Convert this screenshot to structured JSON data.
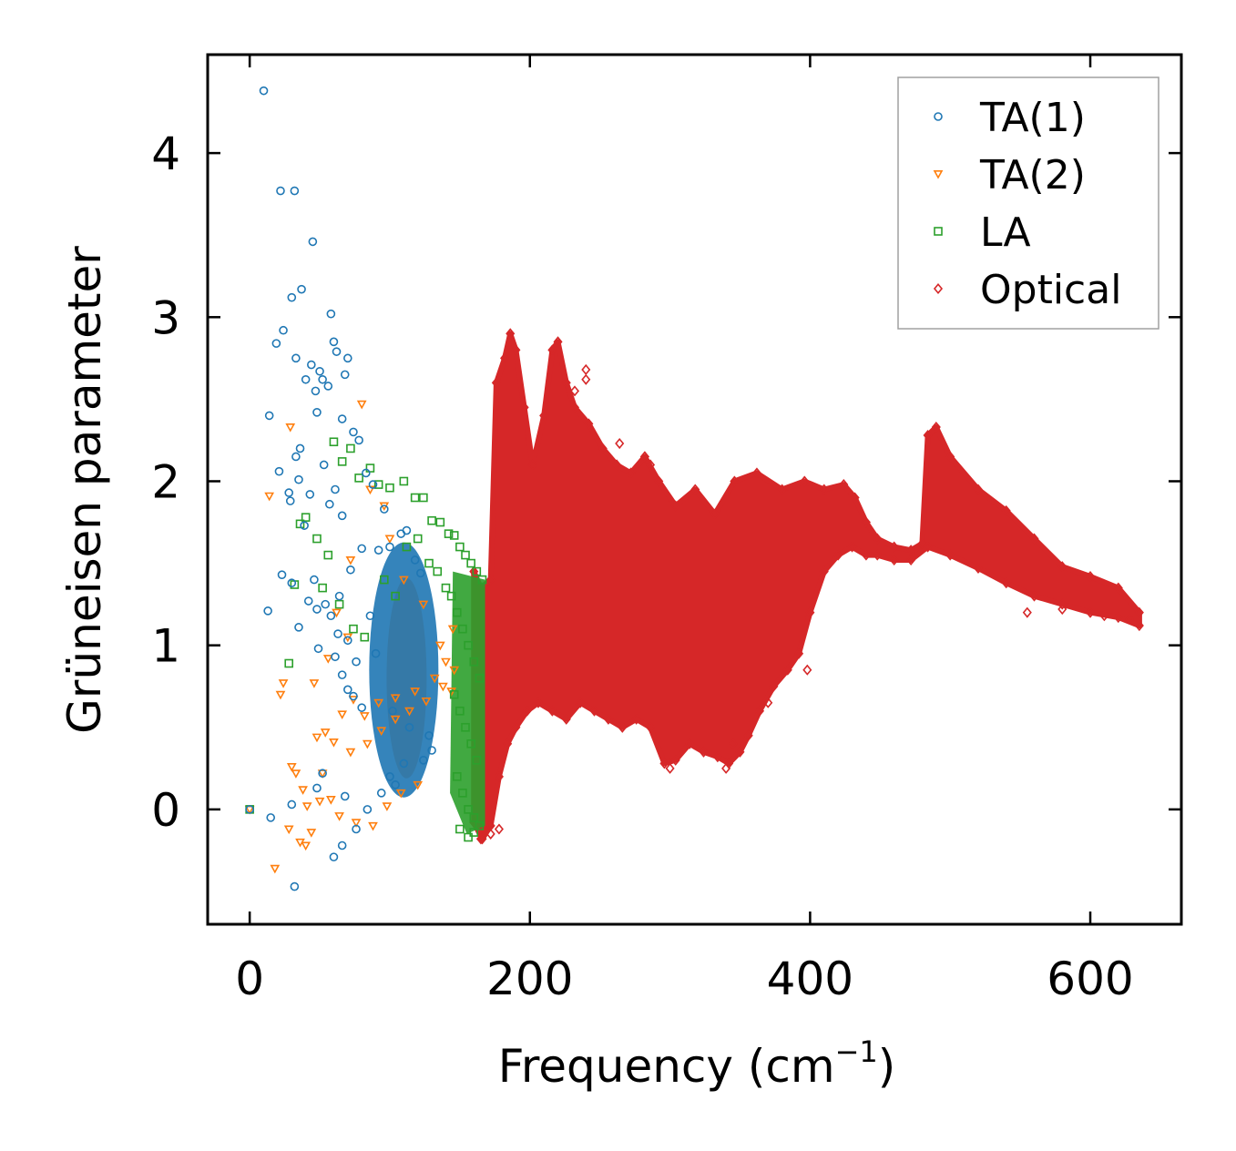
{
  "chart_data": {
    "type": "scatter",
    "title": "",
    "xlabel": "Frequency (cm",
    "xlabel_sup": "−1",
    "xlabel_close": ")",
    "ylabel": "Grüneisen parameter",
    "xlim": [
      -30,
      665
    ],
    "ylim": [
      -0.7,
      4.6
    ],
    "xticks": [
      0,
      200,
      400,
      600
    ],
    "xtick_labels": [
      "0",
      "200",
      "400",
      "600"
    ],
    "yticks": [
      0,
      1,
      2,
      3,
      4
    ],
    "ytick_labels": [
      "0",
      "1",
      "2",
      "3",
      "4"
    ],
    "grid": false,
    "legend_position": "top-right",
    "series": [
      {
        "name": "TA(1)",
        "marker": "circle",
        "color": "#1f77b4",
        "x": [
          10,
          22,
          32,
          45,
          30,
          37,
          24,
          19,
          58,
          60,
          62,
          33,
          44,
          50,
          52,
          47,
          56,
          40,
          70,
          68,
          66,
          36,
          14,
          33,
          48,
          53,
          74,
          78,
          21,
          35,
          28,
          29,
          43,
          39,
          57,
          61,
          66,
          83,
          88,
          96,
          108,
          112,
          122,
          118,
          100,
          92,
          80,
          72,
          64,
          54,
          46,
          23,
          30,
          42,
          48,
          58,
          63,
          70,
          86,
          90,
          76,
          13,
          35,
          49,
          61,
          66,
          70,
          74,
          80,
          102,
          114,
          128,
          130,
          100,
          110,
          0,
          15,
          30,
          48,
          68,
          32,
          60,
          52,
          66,
          76,
          84,
          94,
          104,
          124
        ],
        "y": [
          4.38,
          3.77,
          3.77,
          3.46,
          3.12,
          3.17,
          2.92,
          2.84,
          3.02,
          2.85,
          2.79,
          2.75,
          2.71,
          2.67,
          2.62,
          2.55,
          2.58,
          2.62,
          2.75,
          2.65,
          2.38,
          2.2,
          2.4,
          2.15,
          2.42,
          2.1,
          2.3,
          2.25,
          2.06,
          2.01,
          1.93,
          1.88,
          1.92,
          1.73,
          1.86,
          1.95,
          1.79,
          2.05,
          1.98,
          1.83,
          1.68,
          1.7,
          1.44,
          1.52,
          1.6,
          1.58,
          1.59,
          1.46,
          1.3,
          1.25,
          1.4,
          1.43,
          1.38,
          1.27,
          1.22,
          1.18,
          1.07,
          1.03,
          1.18,
          0.95,
          0.9,
          1.21,
          1.11,
          0.98,
          0.93,
          0.82,
          0.73,
          0.69,
          0.62,
          0.6,
          0.5,
          0.45,
          0.36,
          0.2,
          0.28,
          0.0,
          -0.05,
          0.03,
          0.13,
          0.08,
          -0.47,
          -0.29,
          0.22,
          -0.22,
          -0.12,
          0.0,
          0.1,
          0.15,
          0.3
        ]
      },
      {
        "name": "TA(2)",
        "marker": "triangle-down",
        "color": "#ff7f0e",
        "x": [
          0,
          14,
          29,
          24,
          22,
          30,
          33,
          41,
          48,
          54,
          60,
          66,
          74,
          82,
          92,
          104,
          118,
          132,
          140,
          145,
          80,
          86,
          96,
          100,
          110,
          124,
          136,
          144,
          70,
          62,
          56,
          46,
          38,
          52,
          58,
          64,
          76,
          88,
          98,
          108,
          120,
          40,
          36,
          44,
          50,
          18,
          28,
          72,
          84,
          94,
          104,
          114,
          126,
          138,
          146,
          72
        ],
        "y": [
          0.0,
          1.91,
          2.33,
          0.77,
          0.7,
          0.26,
          0.22,
          0.02,
          0.44,
          0.47,
          0.41,
          0.58,
          0.67,
          0.57,
          0.65,
          0.68,
          0.72,
          0.8,
          0.9,
          1.1,
          2.47,
          1.95,
          1.85,
          1.65,
          1.4,
          1.25,
          1.0,
          0.72,
          1.05,
          1.2,
          0.92,
          0.77,
          0.12,
          0.22,
          0.06,
          -0.04,
          -0.08,
          -0.1,
          0.02,
          0.1,
          0.15,
          -0.22,
          -0.2,
          -0.14,
          0.05,
          -0.36,
          -0.12,
          0.35,
          0.4,
          0.48,
          0.55,
          0.6,
          0.66,
          0.75,
          0.85,
          1.52
        ]
      },
      {
        "name": "LA",
        "marker": "square",
        "color": "#2ca02c",
        "x": [
          0,
          60,
          66,
          72,
          78,
          86,
          92,
          100,
          110,
          118,
          124,
          130,
          136,
          142,
          146,
          150,
          154,
          158,
          162,
          166,
          40,
          36,
          32,
          28,
          56,
          48,
          52,
          64,
          74,
          82,
          96,
          104,
          112,
          120,
          128,
          134,
          140,
          144,
          148,
          152,
          156,
          160,
          164,
          146,
          150,
          154,
          158,
          162,
          148,
          152,
          156,
          160,
          164,
          150,
          156,
          160
        ],
        "y": [
          0.0,
          2.24,
          2.12,
          2.2,
          2.02,
          2.08,
          1.98,
          1.96,
          2.0,
          1.9,
          1.9,
          1.76,
          1.75,
          1.68,
          1.67,
          1.6,
          1.55,
          1.5,
          1.45,
          1.4,
          1.78,
          1.74,
          1.37,
          0.89,
          1.55,
          1.65,
          1.35,
          1.25,
          1.1,
          1.05,
          1.4,
          1.3,
          1.6,
          1.65,
          1.5,
          1.45,
          1.35,
          1.3,
          1.2,
          1.1,
          1.0,
          0.9,
          0.8,
          0.7,
          0.6,
          0.5,
          0.4,
          0.3,
          0.2,
          0.1,
          0.0,
          -0.05,
          -0.1,
          -0.12,
          -0.17,
          -0.14
        ]
      },
      {
        "name": "Optical",
        "marker": "diamond",
        "color": "#d62728",
        "band_upper": [
          [
            160,
            1.45
          ],
          [
            165,
            1.35
          ],
          [
            172,
            1.4
          ],
          [
            176,
            2.6
          ],
          [
            182,
            2.75
          ],
          [
            186,
            2.9
          ],
          [
            190,
            2.8
          ],
          [
            196,
            2.45
          ],
          [
            202,
            2.1
          ],
          [
            210,
            2.4
          ],
          [
            216,
            2.8
          ],
          [
            220,
            2.85
          ],
          [
            226,
            2.6
          ],
          [
            232,
            2.45
          ],
          [
            242,
            2.35
          ],
          [
            252,
            2.2
          ],
          [
            262,
            2.1
          ],
          [
            272,
            2.05
          ],
          [
            282,
            2.15
          ],
          [
            292,
            2.0
          ],
          [
            304,
            1.85
          ],
          [
            318,
            1.95
          ],
          [
            332,
            1.8
          ],
          [
            346,
            2.0
          ],
          [
            362,
            2.05
          ],
          [
            380,
            1.95
          ],
          [
            396,
            2.0
          ],
          [
            410,
            1.95
          ],
          [
            424,
            1.98
          ],
          [
            432,
            1.9
          ],
          [
            440,
            1.75
          ],
          [
            448,
            1.65
          ],
          [
            460,
            1.6
          ],
          [
            472,
            1.58
          ],
          [
            480,
            1.62
          ],
          [
            484,
            2.28
          ],
          [
            490,
            2.33
          ],
          [
            500,
            2.15
          ],
          [
            520,
            1.95
          ],
          [
            540,
            1.82
          ],
          [
            560,
            1.65
          ],
          [
            580,
            1.48
          ],
          [
            600,
            1.42
          ],
          [
            620,
            1.35
          ],
          [
            635,
            1.2
          ]
        ],
        "band_lower": [
          [
            635,
            1.12
          ],
          [
            620,
            1.17
          ],
          [
            600,
            1.2
          ],
          [
            580,
            1.25
          ],
          [
            560,
            1.3
          ],
          [
            540,
            1.38
          ],
          [
            520,
            1.47
          ],
          [
            500,
            1.55
          ],
          [
            484,
            1.6
          ],
          [
            472,
            1.52
          ],
          [
            460,
            1.52
          ],
          [
            448,
            1.55
          ],
          [
            440,
            1.55
          ],
          [
            430,
            1.6
          ],
          [
            420,
            1.55
          ],
          [
            410,
            1.45
          ],
          [
            400,
            1.2
          ],
          [
            392,
            0.95
          ],
          [
            384,
            0.85
          ],
          [
            374,
            0.75
          ],
          [
            364,
            0.6
          ],
          [
            356,
            0.45
          ],
          [
            350,
            0.35
          ],
          [
            342,
            0.28
          ],
          [
            334,
            0.32
          ],
          [
            324,
            0.35
          ],
          [
            314,
            0.4
          ],
          [
            304,
            0.3
          ],
          [
            296,
            0.28
          ],
          [
            286,
            0.5
          ],
          [
            276,
            0.55
          ],
          [
            266,
            0.5
          ],
          [
            256,
            0.55
          ],
          [
            246,
            0.6
          ],
          [
            236,
            0.65
          ],
          [
            226,
            0.55
          ],
          [
            216,
            0.6
          ],
          [
            206,
            0.65
          ],
          [
            198,
            0.6
          ],
          [
            190,
            0.5
          ],
          [
            184,
            0.4
          ],
          [
            178,
            0.2
          ],
          [
            172,
            -0.1
          ],
          [
            166,
            -0.18
          ],
          [
            160,
            -0.08
          ]
        ],
        "outliers": [
          [
            240,
            2.68
          ],
          [
            240,
            2.62
          ],
          [
            264,
            2.23
          ],
          [
            282,
            2.15
          ],
          [
            286,
            2.1
          ],
          [
            300,
            0.25
          ],
          [
            340,
            0.25
          ],
          [
            345,
            0.4
          ],
          [
            398,
            0.85
          ],
          [
            370,
            0.65
          ],
          [
            165,
            -0.18
          ],
          [
            172,
            -0.15
          ],
          [
            178,
            -0.12
          ],
          [
            232,
            2.55
          ],
          [
            555,
            1.2
          ],
          [
            580,
            1.22
          ],
          [
            610,
            1.18
          ],
          [
            628,
            1.16
          ]
        ]
      }
    ]
  }
}
